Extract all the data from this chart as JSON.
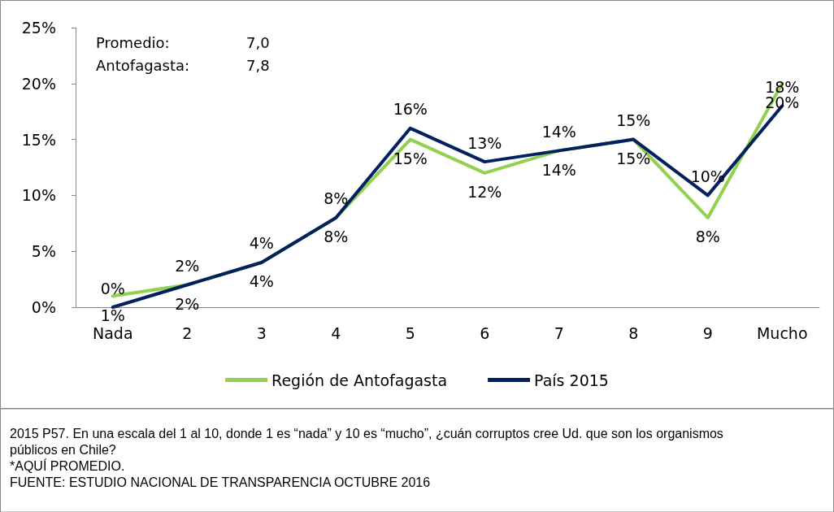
{
  "chart_data": {
    "type": "line",
    "categories": [
      "Nada",
      "2",
      "3",
      "4",
      "5",
      "6",
      "7",
      "8",
      "9",
      "Mucho"
    ],
    "series": [
      {
        "name": "Región de Antofagasta",
        "color": "#92d050",
        "values": [
          1,
          2,
          4,
          8,
          15,
          12,
          14,
          15,
          8,
          20
        ],
        "value_labels": [
          "1%",
          "2%",
          "4%",
          "8%",
          "15%",
          "12%",
          "14%",
          "15%",
          "8%",
          "20%"
        ]
      },
      {
        "name": "País 2015",
        "color": "#002060",
        "values": [
          0,
          2,
          4,
          8,
          16,
          13,
          14,
          15,
          10,
          18
        ],
        "value_labels": [
          "0%",
          "2%",
          "4%",
          "8%",
          "16%",
          "13%",
          "14%",
          "15%",
          "10%",
          "18%"
        ]
      }
    ],
    "ylim": [
      0,
      25
    ],
    "yticks": [
      {
        "value": 0,
        "label": "0%"
      },
      {
        "value": 5,
        "label": "5%"
      },
      {
        "value": 10,
        "label": "10%"
      },
      {
        "value": 15,
        "label": "15%"
      },
      {
        "value": 20,
        "label": "20%"
      },
      {
        "value": 25,
        "label": "25%"
      }
    ],
    "grid": false,
    "legend": "bottom",
    "marker": "none",
    "line_style": "solid",
    "annotations": [
      "Promedio: 7,0",
      "Antofagasta: 7,8",
      "2015 P57. En una escala del 1 al 10, donde 1 es “nada” y 10 es “mucho”, ¿cuán corruptos cree Ud. que son los organismos públicos en Chile?",
      "*AQUÍ PROMEDIO.",
      "FUENTE: ESTUDIO NACIONAL DE TRANSPARENCIA OCTUBRE 2016"
    ]
  }
}
